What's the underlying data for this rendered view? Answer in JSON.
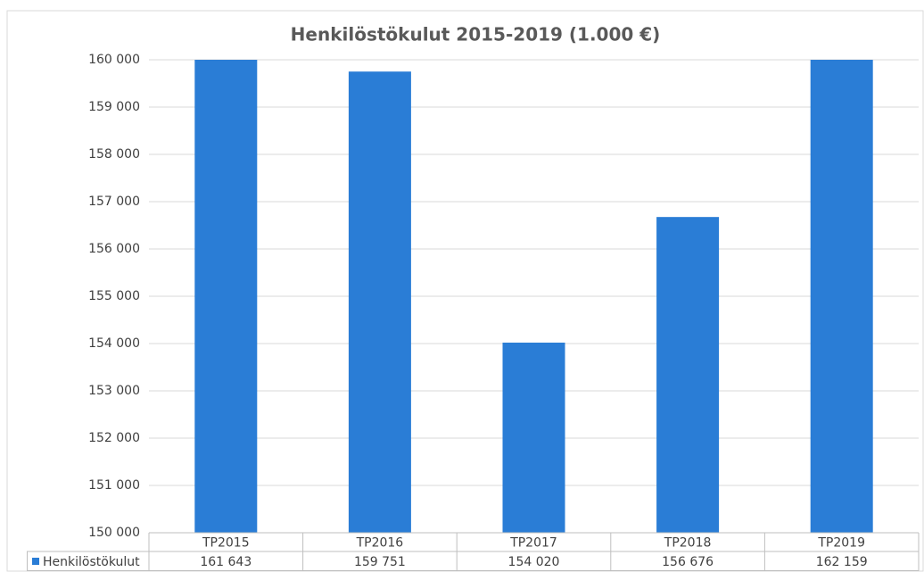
{
  "chart_data": {
    "type": "bar",
    "title": "Henkilöstökulut 2015-2019 (1.000 €)",
    "categories": [
      "TP2015",
      "TP2016",
      "TP2017",
      "TP2018",
      "TP2019"
    ],
    "series": [
      {
        "name": "Henkilöstökulut",
        "color": "#2a7dd6",
        "values": [
          161643,
          159751,
          154020,
          156676,
          162159
        ],
        "value_labels": [
          "161 643",
          "159 751",
          "154 020",
          "156 676",
          "162 159"
        ]
      }
    ],
    "ylim": [
      150000,
      160000
    ],
    "yticks": [
      {
        "value": 150000,
        "label": "150 000"
      },
      {
        "value": 151000,
        "label": "151 000"
      },
      {
        "value": 152000,
        "label": "152 000"
      },
      {
        "value": 153000,
        "label": "153 000"
      },
      {
        "value": 154000,
        "label": "154 000"
      },
      {
        "value": 155000,
        "label": "155 000"
      },
      {
        "value": 156000,
        "label": "156 000"
      },
      {
        "value": 157000,
        "label": "157 000"
      },
      {
        "value": 158000,
        "label": "158 000"
      },
      {
        "value": 159000,
        "label": "159 000"
      },
      {
        "value": 160000,
        "label": "160 000"
      }
    ],
    "grid": true
  }
}
